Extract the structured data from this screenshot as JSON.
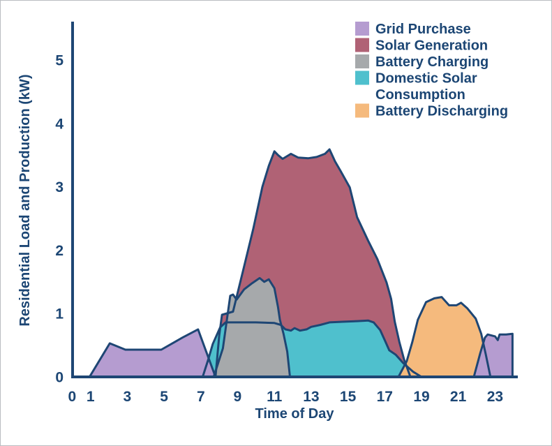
{
  "figure": {
    "type_note": "stacked-style area chart of residential energy flows over one day"
  },
  "chart_data": {
    "type": "area",
    "title": "",
    "xlabel": "Time of Day",
    "ylabel": "Residential Load and Production (kW)",
    "xlim": [
      0,
      24
    ],
    "ylim": [
      0,
      5.5
    ],
    "x_ticks": [
      0,
      1,
      3,
      5,
      7,
      9,
      11,
      13,
      15,
      17,
      19,
      21,
      23
    ],
    "y_ticks": [
      0,
      1,
      2,
      3,
      4,
      5
    ],
    "grid": "off",
    "legend_position": "top-right",
    "colors": {
      "axis_stroke": "#1e4674",
      "outline_stroke": "#1e4674",
      "text": "#1c4674",
      "grid_purchase": "#b59cd0",
      "solar_generation": "#b06275",
      "battery_charging": "#a6a9ab",
      "domestic_solar_consumption": "#4fc0cd",
      "battery_discharging": "#f5ba7d"
    },
    "legend": [
      {
        "name": "Grid Purchase",
        "lines": [
          "Grid Purchase"
        ],
        "color_key": "grid_purchase"
      },
      {
        "name": "Solar Generation",
        "lines": [
          "Solar Generation"
        ],
        "color_key": "solar_generation"
      },
      {
        "name": "Battery Charging",
        "lines": [
          "Battery Charging"
        ],
        "color_key": "battery_charging"
      },
      {
        "name": "Domestic Solar Consumption",
        "lines": [
          "Domestic Solar",
          "Consumption"
        ],
        "color_key": "domestic_solar_consumption"
      },
      {
        "name": "Battery Discharging",
        "lines": [
          "Battery Discharging"
        ],
        "color_key": "battery_discharging"
      }
    ],
    "series": [
      {
        "name": "Solar Generation",
        "color_key": "solar_generation",
        "units": "kW",
        "segments": [
          [
            [
              7.8,
              0
            ],
            [
              8.0,
              0.65
            ],
            [
              8.15,
              0.98
            ],
            [
              8.75,
              1.03
            ],
            [
              9.3,
              1.68
            ],
            [
              9.85,
              2.33
            ],
            [
              10.35,
              3.0
            ],
            [
              10.7,
              3.33
            ],
            [
              11.0,
              3.56
            ],
            [
              11.2,
              3.5
            ],
            [
              11.45,
              3.44
            ],
            [
              11.9,
              3.52
            ],
            [
              12.3,
              3.46
            ],
            [
              12.85,
              3.45
            ],
            [
              13.3,
              3.47
            ],
            [
              13.75,
              3.52
            ],
            [
              14.0,
              3.59
            ],
            [
              14.3,
              3.4
            ],
            [
              14.6,
              3.25
            ],
            [
              15.1,
              2.99
            ],
            [
              15.5,
              2.52
            ],
            [
              16.1,
              2.15
            ],
            [
              16.6,
              1.86
            ],
            [
              17.1,
              1.49
            ],
            [
              17.35,
              1.23
            ],
            [
              17.55,
              0.87
            ],
            [
              17.8,
              0.55
            ],
            [
              18.05,
              0.28
            ],
            [
              18.4,
              0
            ]
          ]
        ]
      },
      {
        "name": "Domestic Solar Consumption",
        "color_key": "domestic_solar_consumption",
        "units": "kW",
        "segments": [
          [
            [
              7.1,
              0
            ],
            [
              7.4,
              0.27
            ],
            [
              7.65,
              0.52
            ],
            [
              8.05,
              0.78
            ],
            [
              8.35,
              0.86
            ],
            [
              9.0,
              0.86
            ],
            [
              10.0,
              0.86
            ],
            [
              11.0,
              0.85
            ],
            [
              11.35,
              0.82
            ],
            [
              11.6,
              0.75
            ],
            [
              11.9,
              0.73
            ],
            [
              12.1,
              0.77
            ],
            [
              12.4,
              0.73
            ],
            [
              12.75,
              0.75
            ],
            [
              13.0,
              0.79
            ],
            [
              13.5,
              0.82
            ],
            [
              14.0,
              0.86
            ],
            [
              14.7,
              0.87
            ],
            [
              15.5,
              0.88
            ],
            [
              16.1,
              0.89
            ],
            [
              16.4,
              0.86
            ],
            [
              16.75,
              0.74
            ],
            [
              17.0,
              0.58
            ],
            [
              17.25,
              0.42
            ],
            [
              17.6,
              0.35
            ],
            [
              18.0,
              0.22
            ],
            [
              18.55,
              0.08
            ],
            [
              19.0,
              0
            ]
          ]
        ]
      },
      {
        "name": "Battery Charging",
        "color_key": "battery_charging",
        "units": "kW",
        "segments": [
          [
            [
              7.7,
              0
            ],
            [
              8.2,
              0.45
            ],
            [
              8.6,
              1.28
            ],
            [
              8.75,
              1.3
            ],
            [
              8.95,
              1.22
            ],
            [
              9.35,
              1.38
            ],
            [
              9.8,
              1.48
            ],
            [
              10.2,
              1.56
            ],
            [
              10.45,
              1.5
            ],
            [
              10.7,
              1.54
            ],
            [
              11.0,
              1.4
            ],
            [
              11.2,
              1.1
            ],
            [
              11.3,
              0.9
            ],
            [
              11.5,
              0.68
            ],
            [
              11.7,
              0.4
            ],
            [
              11.85,
              0
            ]
          ]
        ]
      },
      {
        "name": "Battery Discharging",
        "color_key": "battery_discharging",
        "units": "kW",
        "segments": [
          [
            [
              17.75,
              0
            ],
            [
              18.2,
              0.25
            ],
            [
              18.5,
              0.55
            ],
            [
              18.8,
              0.9
            ],
            [
              19.25,
              1.18
            ],
            [
              19.7,
              1.24
            ],
            [
              20.1,
              1.26
            ],
            [
              20.5,
              1.13
            ],
            [
              20.9,
              1.13
            ],
            [
              21.15,
              1.17
            ],
            [
              21.5,
              1.08
            ],
            [
              21.95,
              0.92
            ],
            [
              22.25,
              0.68
            ],
            [
              22.5,
              0.35
            ],
            [
              22.75,
              0
            ]
          ]
        ]
      },
      {
        "name": "Grid Purchase",
        "color_key": "grid_purchase",
        "units": "kW",
        "segments": [
          [
            [
              0.95,
              0
            ],
            [
              2.05,
              0.53
            ],
            [
              2.9,
              0.43
            ],
            [
              4.85,
              0.43
            ],
            [
              6.0,
              0.62
            ],
            [
              6.85,
              0.75
            ],
            [
              7.8,
              0
            ]
          ],
          [
            [
              21.85,
              0
            ],
            [
              22.2,
              0.38
            ],
            [
              22.45,
              0.62
            ],
            [
              22.6,
              0.67
            ],
            [
              23.0,
              0.64
            ],
            [
              23.15,
              0.58
            ],
            [
              23.25,
              0.67
            ],
            [
              23.6,
              0.67
            ],
            [
              23.95,
              0.68
            ]
          ]
        ]
      }
    ]
  }
}
